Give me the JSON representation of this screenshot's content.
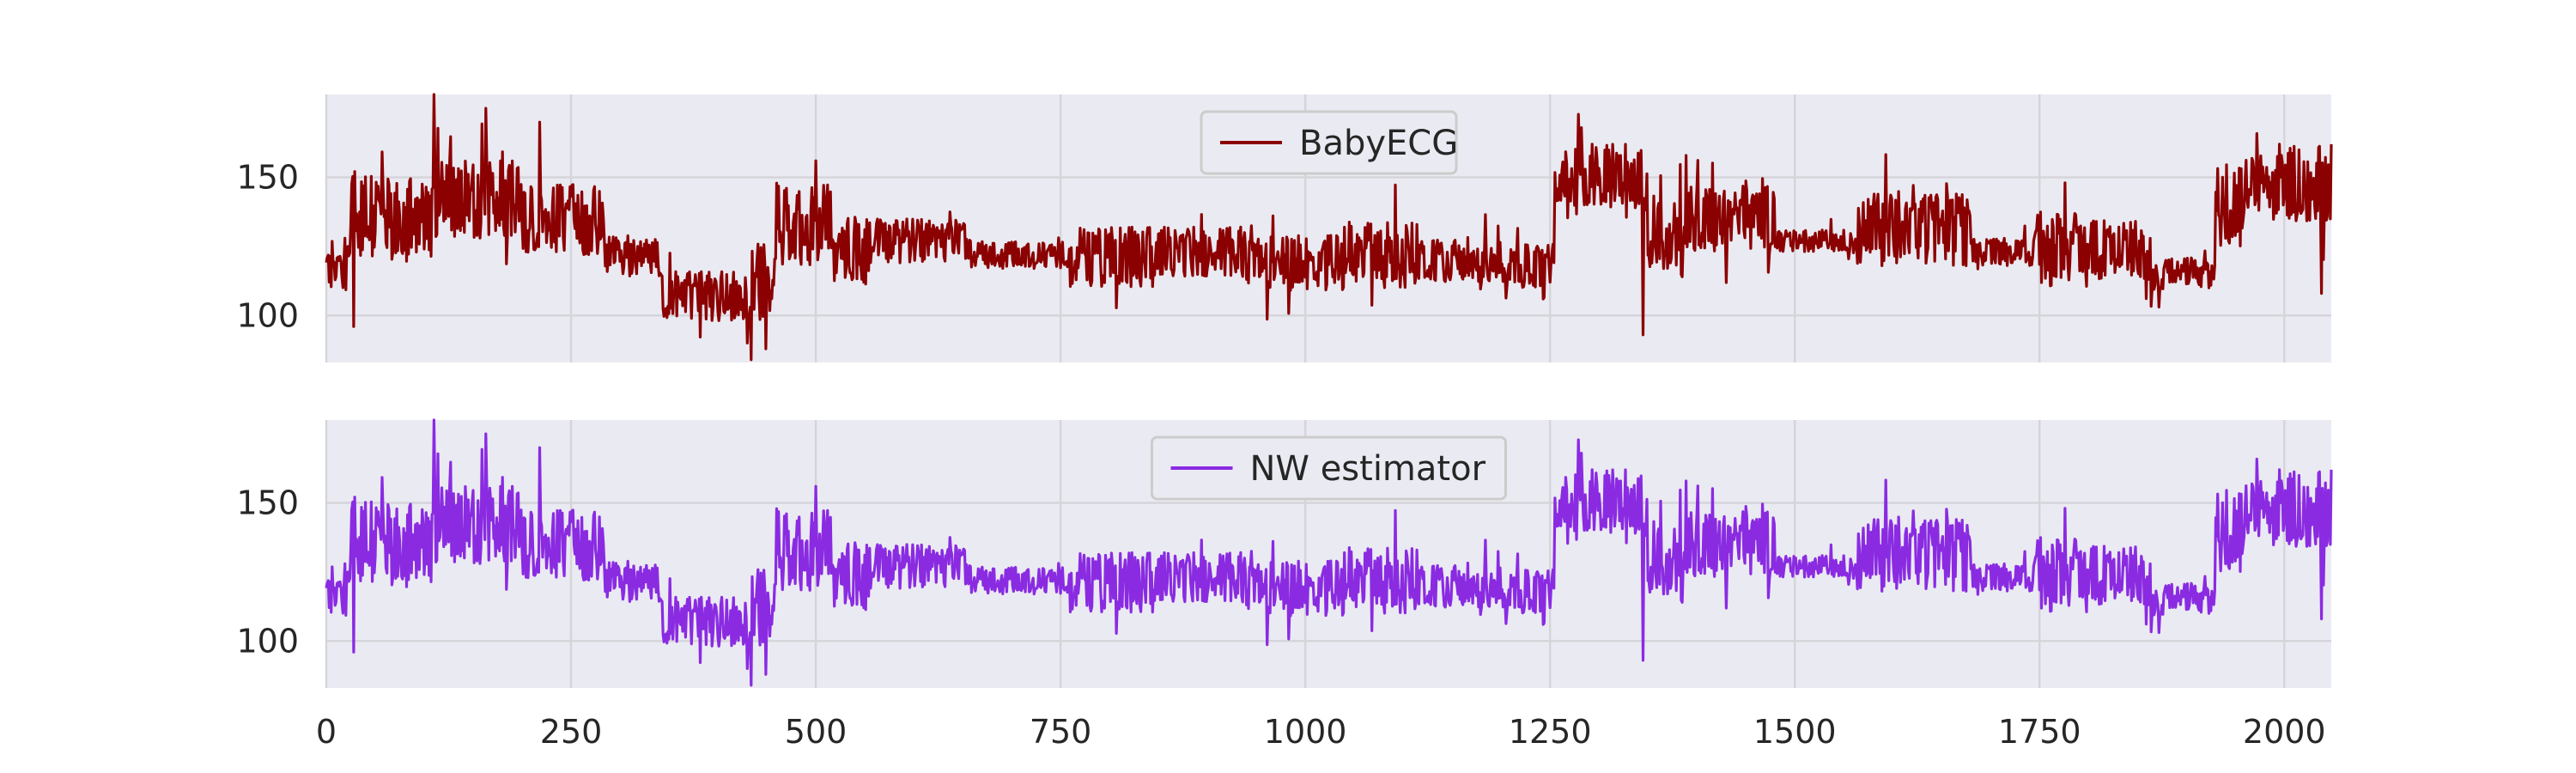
{
  "chart_data": [
    {
      "type": "line",
      "series": [
        {
          "name": "BabyECG",
          "color": "#8b0000"
        }
      ],
      "xlim": [
        0,
        2048
      ],
      "ylim": [
        83,
        180
      ],
      "xticks": [
        "0",
        "250",
        "500",
        "750",
        "1000",
        "1250",
        "1500",
        "1750",
        "2000"
      ],
      "yticks": [
        "100",
        "150"
      ],
      "grid": true,
      "legend": "top-center",
      "x_tick_labels_shown": false
    },
    {
      "type": "line",
      "series": [
        {
          "name": "NW estimator",
          "color": "#8a2be2"
        }
      ],
      "xlim": [
        0,
        2048
      ],
      "ylim": [
        83,
        180
      ],
      "xticks": [
        "0",
        "250",
        "500",
        "750",
        "1000",
        "1250",
        "1500",
        "1750",
        "2000"
      ],
      "yticks": [
        "100",
        "150"
      ],
      "grid": true,
      "legend": "top-center",
      "x_tick_labels_shown": true
    }
  ],
  "segments": [
    {
      "x0": 0,
      "x1": 25,
      "base": 118,
      "amp": 10
    },
    {
      "x0": 25,
      "x1": 110,
      "base": 135,
      "amp": 16
    },
    {
      "x0": 110,
      "x1": 200,
      "base": 142,
      "amp": 14
    },
    {
      "x0": 200,
      "x1": 285,
      "base": 135,
      "amp": 13
    },
    {
      "x0": 285,
      "x1": 340,
      "base": 122,
      "amp": 7
    },
    {
      "x0": 340,
      "x1": 435,
      "base": 107,
      "amp": 9
    },
    {
      "x0": 435,
      "x1": 460,
      "base": 112,
      "amp": 14
    },
    {
      "x0": 460,
      "x1": 515,
      "base": 133,
      "amp": 15
    },
    {
      "x0": 515,
      "x1": 560,
      "base": 124,
      "amp": 13
    },
    {
      "x0": 560,
      "x1": 660,
      "base": 127,
      "amp": 8
    },
    {
      "x0": 660,
      "x1": 760,
      "base": 122,
      "amp": 5
    },
    {
      "x0": 760,
      "x1": 850,
      "base": 121,
      "amp": 11
    },
    {
      "x0": 850,
      "x1": 940,
      "base": 123,
      "amp": 9
    },
    {
      "x0": 940,
      "x1": 1040,
      "base": 119,
      "amp": 10
    },
    {
      "x0": 1040,
      "x1": 1120,
      "base": 122,
      "amp": 12
    },
    {
      "x0": 1120,
      "x1": 1200,
      "base": 120,
      "amp": 8
    },
    {
      "x0": 1200,
      "x1": 1255,
      "base": 118,
      "amp": 8
    },
    {
      "x0": 1255,
      "x1": 1290,
      "base": 148,
      "amp": 13
    },
    {
      "x0": 1290,
      "x1": 1350,
      "base": 150,
      "amp": 12
    },
    {
      "x0": 1350,
      "x1": 1380,
      "base": 130,
      "amp": 14
    },
    {
      "x0": 1380,
      "x1": 1480,
      "base": 135,
      "amp": 12
    },
    {
      "x0": 1480,
      "x1": 1560,
      "base": 127,
      "amp": 4
    },
    {
      "x0": 1560,
      "x1": 1680,
      "base": 131,
      "amp": 13
    },
    {
      "x0": 1680,
      "x1": 1745,
      "base": 123,
      "amp": 5
    },
    {
      "x0": 1745,
      "x1": 1790,
      "base": 124,
      "amp": 14
    },
    {
      "x0": 1790,
      "x1": 1865,
      "base": 124,
      "amp": 11
    },
    {
      "x0": 1865,
      "x1": 1930,
      "base": 115,
      "amp": 6
    },
    {
      "x0": 1930,
      "x1": 1960,
      "base": 140,
      "amp": 15
    },
    {
      "x0": 1960,
      "x1": 2048,
      "base": 148,
      "amp": 14
    }
  ],
  "spikes": [
    {
      "x": 28,
      "y": 96
    },
    {
      "x": 110,
      "y": 180
    },
    {
      "x": 163,
      "y": 175
    },
    {
      "x": 218,
      "y": 170
    },
    {
      "x": 430,
      "y": 90
    },
    {
      "x": 434,
      "y": 84
    },
    {
      "x": 500,
      "y": 156
    },
    {
      "x": 1282,
      "y": 168
    },
    {
      "x": 1345,
      "y": 93
    },
    {
      "x": 2038,
      "y": 108
    },
    {
      "x": 2048,
      "y": 162
    }
  ]
}
